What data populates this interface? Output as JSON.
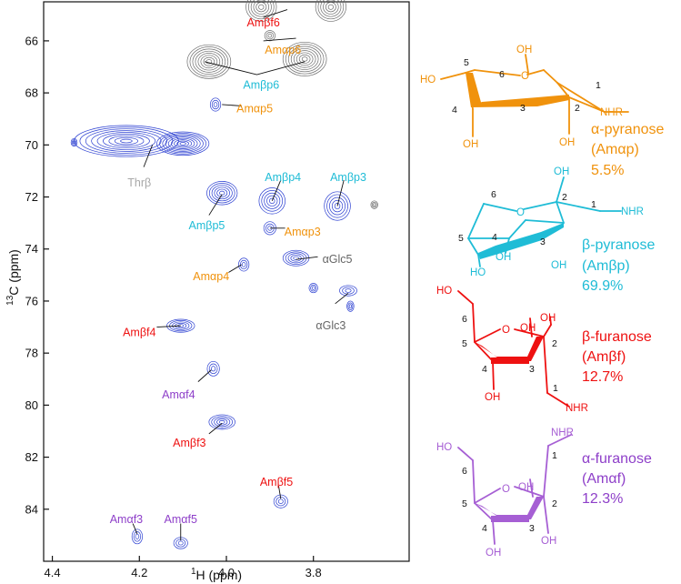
{
  "chart_data": {
    "type": "scatter",
    "title": "",
    "xlabel_prefix": "1",
    "xlabel": "H  (ppm)",
    "ylabel_prefix": "13",
    "ylabel": "C  (ppm)",
    "xlim": [
      4.42,
      3.58
    ],
    "ylim": [
      64.5,
      86.0
    ],
    "x_reversed": true,
    "y_reversed": true,
    "grid": false,
    "xticks": [
      {
        "value": 4.4,
        "label": "4.4"
      },
      {
        "value": 4.2,
        "label": "4.2"
      },
      {
        "value": 4.0,
        "label": "4.0"
      },
      {
        "value": 3.8,
        "label": "3.8"
      }
    ],
    "yticks": [
      {
        "value": 66,
        "label": "66"
      },
      {
        "value": 68,
        "label": "68"
      },
      {
        "value": 70,
        "label": "70"
      },
      {
        "value": 72,
        "label": "72"
      },
      {
        "value": 74,
        "label": "74"
      },
      {
        "value": 76,
        "label": "76"
      },
      {
        "value": 78,
        "label": "78"
      },
      {
        "value": 80,
        "label": "80"
      },
      {
        "value": 82,
        "label": "82"
      },
      {
        "value": 84,
        "label": "84"
      }
    ],
    "colors": {
      "positive": "#2b3fd1",
      "negative": "#6e6e6e",
      "alpha_pyranose": "#f0920c",
      "beta_pyranose": "#1fbcd6",
      "beta_furanose": "#ee1111",
      "alpha_furanose": "#8e3fc9",
      "threonine": "#a8a8a8",
      "glucose": "#666666"
    },
    "peaks": [
      {
        "x": 3.92,
        "y": 64.7,
        "sign": "negative",
        "w": 0.035,
        "h": 0.55
      },
      {
        "x": 3.76,
        "y": 64.7,
        "sign": "negative",
        "w": 0.035,
        "h": 0.55
      },
      {
        "x": 3.9,
        "y": 65.8,
        "sign": "negative",
        "w": 0.012,
        "h": 0.2
      },
      {
        "x": 4.04,
        "y": 66.8,
        "sign": "negative",
        "w": 0.05,
        "h": 0.65
      },
      {
        "x": 3.82,
        "y": 66.7,
        "sign": "negative",
        "w": 0.05,
        "h": 0.65
      },
      {
        "x": 4.025,
        "y": 68.45,
        "sign": "positive",
        "w": 0.012,
        "h": 0.25
      },
      {
        "x": 4.23,
        "y": 69.85,
        "sign": "positive",
        "w": 0.12,
        "h": 0.6
      },
      {
        "x": 4.1,
        "y": 69.95,
        "sign": "positive",
        "w": 0.06,
        "h": 0.45
      },
      {
        "x": 4.35,
        "y": 69.9,
        "sign": "positive",
        "w": 0.007,
        "h": 0.15
      },
      {
        "x": 4.01,
        "y": 71.85,
        "sign": "positive",
        "w": 0.035,
        "h": 0.45
      },
      {
        "x": 3.895,
        "y": 72.15,
        "sign": "positive",
        "w": 0.03,
        "h": 0.5
      },
      {
        "x": 3.745,
        "y": 72.35,
        "sign": "positive",
        "w": 0.03,
        "h": 0.55
      },
      {
        "x": 3.66,
        "y": 72.3,
        "sign": "negative",
        "w": 0.008,
        "h": 0.15
      },
      {
        "x": 3.9,
        "y": 73.2,
        "sign": "positive",
        "w": 0.014,
        "h": 0.25
      },
      {
        "x": 3.84,
        "y": 74.35,
        "sign": "positive",
        "w": 0.03,
        "h": 0.3
      },
      {
        "x": 3.96,
        "y": 74.6,
        "sign": "positive",
        "w": 0.012,
        "h": 0.25
      },
      {
        "x": 3.8,
        "y": 75.5,
        "sign": "positive",
        "w": 0.01,
        "h": 0.18
      },
      {
        "x": 3.72,
        "y": 75.6,
        "sign": "positive",
        "w": 0.02,
        "h": 0.2
      },
      {
        "x": 3.715,
        "y": 76.2,
        "sign": "positive",
        "w": 0.008,
        "h": 0.2
      },
      {
        "x": 4.105,
        "y": 76.95,
        "sign": "positive",
        "w": 0.032,
        "h": 0.25
      },
      {
        "x": 4.03,
        "y": 78.6,
        "sign": "positive",
        "w": 0.014,
        "h": 0.28
      },
      {
        "x": 4.01,
        "y": 80.65,
        "sign": "positive",
        "w": 0.03,
        "h": 0.28
      },
      {
        "x": 3.875,
        "y": 83.7,
        "sign": "positive",
        "w": 0.016,
        "h": 0.25
      },
      {
        "x": 4.205,
        "y": 85.05,
        "sign": "positive",
        "w": 0.012,
        "h": 0.28
      },
      {
        "x": 4.105,
        "y": 85.3,
        "sign": "positive",
        "w": 0.016,
        "h": 0.22
      }
    ],
    "annotations": [
      {
        "text": "Amβf6",
        "series": "beta_furanose",
        "tx": 3.915,
        "ty": 65.3,
        "line": [
          [
            3.915,
            65.1
          ],
          [
            3.86,
            64.8
          ]
        ]
      },
      {
        "text": "Amαp6",
        "series": "alpha_pyranose",
        "tx": 3.87,
        "ty": 66.35,
        "line": [
          [
            3.915,
            66.0
          ],
          [
            3.84,
            65.9
          ]
        ]
      },
      {
        "text": "Amβp6",
        "series": "beta_pyranose",
        "tx": 3.92,
        "ty": 67.7,
        "line": [
          [
            4.05,
            66.8
          ],
          [
            3.93,
            67.3
          ],
          [
            3.82,
            66.8
          ]
        ]
      },
      {
        "text": "Amαp5",
        "series": "alpha_pyranose",
        "tx": 3.935,
        "ty": 68.6,
        "line": [
          [
            4.01,
            68.45
          ],
          [
            3.965,
            68.5
          ]
        ]
      },
      {
        "text": "Thrβ",
        "series": "threonine",
        "tx": 4.2,
        "ty": 71.45,
        "line": [
          [
            4.17,
            70.0
          ],
          [
            4.19,
            70.85
          ]
        ]
      },
      {
        "text": "Amβp4",
        "series": "beta_pyranose",
        "tx": 3.87,
        "ty": 71.25,
        "line": [
          [
            3.875,
            71.35
          ],
          [
            3.895,
            72.15
          ]
        ]
      },
      {
        "text": "Amβp3",
        "series": "beta_pyranose",
        "tx": 3.72,
        "ty": 71.25,
        "line": [
          [
            3.73,
            71.35
          ],
          [
            3.745,
            72.35
          ]
        ]
      },
      {
        "text": "Amβp5",
        "series": "beta_pyranose",
        "tx": 4.045,
        "ty": 73.1,
        "line": [
          [
            4.01,
            71.9
          ],
          [
            4.04,
            72.7
          ]
        ]
      },
      {
        "text": "Amαp3",
        "series": "alpha_pyranose",
        "tx": 3.825,
        "ty": 73.35,
        "line": [
          [
            3.9,
            73.2
          ],
          [
            3.865,
            73.2
          ]
        ]
      },
      {
        "text": "αGlc5",
        "series": "glucose",
        "tx": 3.745,
        "ty": 74.4,
        "line": [
          [
            3.84,
            74.4
          ],
          [
            3.79,
            74.3
          ]
        ]
      },
      {
        "text": "Amαp4",
        "series": "alpha_pyranose",
        "tx": 4.035,
        "ty": 75.05,
        "line": [
          [
            3.965,
            74.6
          ],
          [
            3.995,
            74.9
          ]
        ]
      },
      {
        "text": "αGlc3",
        "series": "glucose",
        "tx": 3.76,
        "ty": 76.95,
        "line": [
          [
            3.72,
            75.7
          ],
          [
            3.75,
            76.1
          ]
        ]
      },
      {
        "text": "Amβf4",
        "series": "beta_furanose",
        "tx": 4.2,
        "ty": 77.2,
        "line": [
          [
            4.105,
            76.95
          ],
          [
            4.16,
            77.0
          ]
        ]
      },
      {
        "text": "Amαf4",
        "series": "alpha_furanose",
        "tx": 4.11,
        "ty": 79.6,
        "line": [
          [
            4.035,
            78.65
          ],
          [
            4.065,
            79.1
          ]
        ]
      },
      {
        "text": "Amβf3",
        "series": "beta_furanose",
        "tx": 4.085,
        "ty": 81.45,
        "line": [
          [
            4.01,
            80.7
          ],
          [
            4.04,
            81.1
          ]
        ]
      },
      {
        "text": "Amβf5",
        "series": "beta_furanose",
        "tx": 3.885,
        "ty": 82.95,
        "line": [
          [
            3.88,
            83.1
          ],
          [
            3.875,
            83.6
          ]
        ]
      },
      {
        "text": "Amαf3",
        "series": "alpha_furanose",
        "tx": 4.23,
        "ty": 84.4,
        "line": [
          [
            4.215,
            84.55
          ],
          [
            4.205,
            84.95
          ]
        ]
      },
      {
        "text": "Amαf5",
        "series": "alpha_furanose",
        "tx": 4.105,
        "ty": 84.4,
        "line": [
          [
            4.105,
            84.55
          ],
          [
            4.105,
            85.2
          ]
        ]
      }
    ]
  },
  "structures": {
    "alpha_pyranose": {
      "name": "α-pyranose",
      "abbrev": "(Amαp)",
      "percent": "5.5%",
      "atoms": {
        "ho": "HO",
        "o": "O",
        "oh_top": "OH",
        "oh4": "OH",
        "oh2": "OH",
        "nhr": "NHR"
      },
      "numbers": [
        "5",
        "6",
        "1",
        "4",
        "3",
        "2"
      ]
    },
    "beta_pyranose": {
      "name": "β-pyranose",
      "abbrev": "(Amβp)",
      "percent": "69.9%",
      "atoms": {
        "oh_top": "OH",
        "o": "O",
        "nhr": "NHR",
        "oh4": "OH",
        "ho": "HO",
        "oh3": "OH"
      },
      "numbers": [
        "6",
        "2",
        "1",
        "5",
        "4",
        "3"
      ]
    },
    "beta_furanose": {
      "name": "β-furanose",
      "abbrev": "(Amβf)",
      "percent": "12.7%",
      "atoms": {
        "ho": "HO",
        "o": "O",
        "oh_top": "OH",
        "oh_top2": "OH",
        "oh4": "OH",
        "nhr": "NHR"
      },
      "numbers": [
        "6",
        "5",
        "2",
        "4",
        "3",
        "1"
      ]
    },
    "alpha_furanose": {
      "name": "α-furanose",
      "abbrev": "(Amαf)",
      "percent": "12.3%",
      "atoms": {
        "ho": "HO",
        "nhr": "NHR",
        "o": "O",
        "oh_top": "OH",
        "oh4": "OH",
        "oh2": "OH"
      },
      "numbers": [
        "6",
        "1",
        "5",
        "2",
        "4",
        "3"
      ]
    }
  }
}
